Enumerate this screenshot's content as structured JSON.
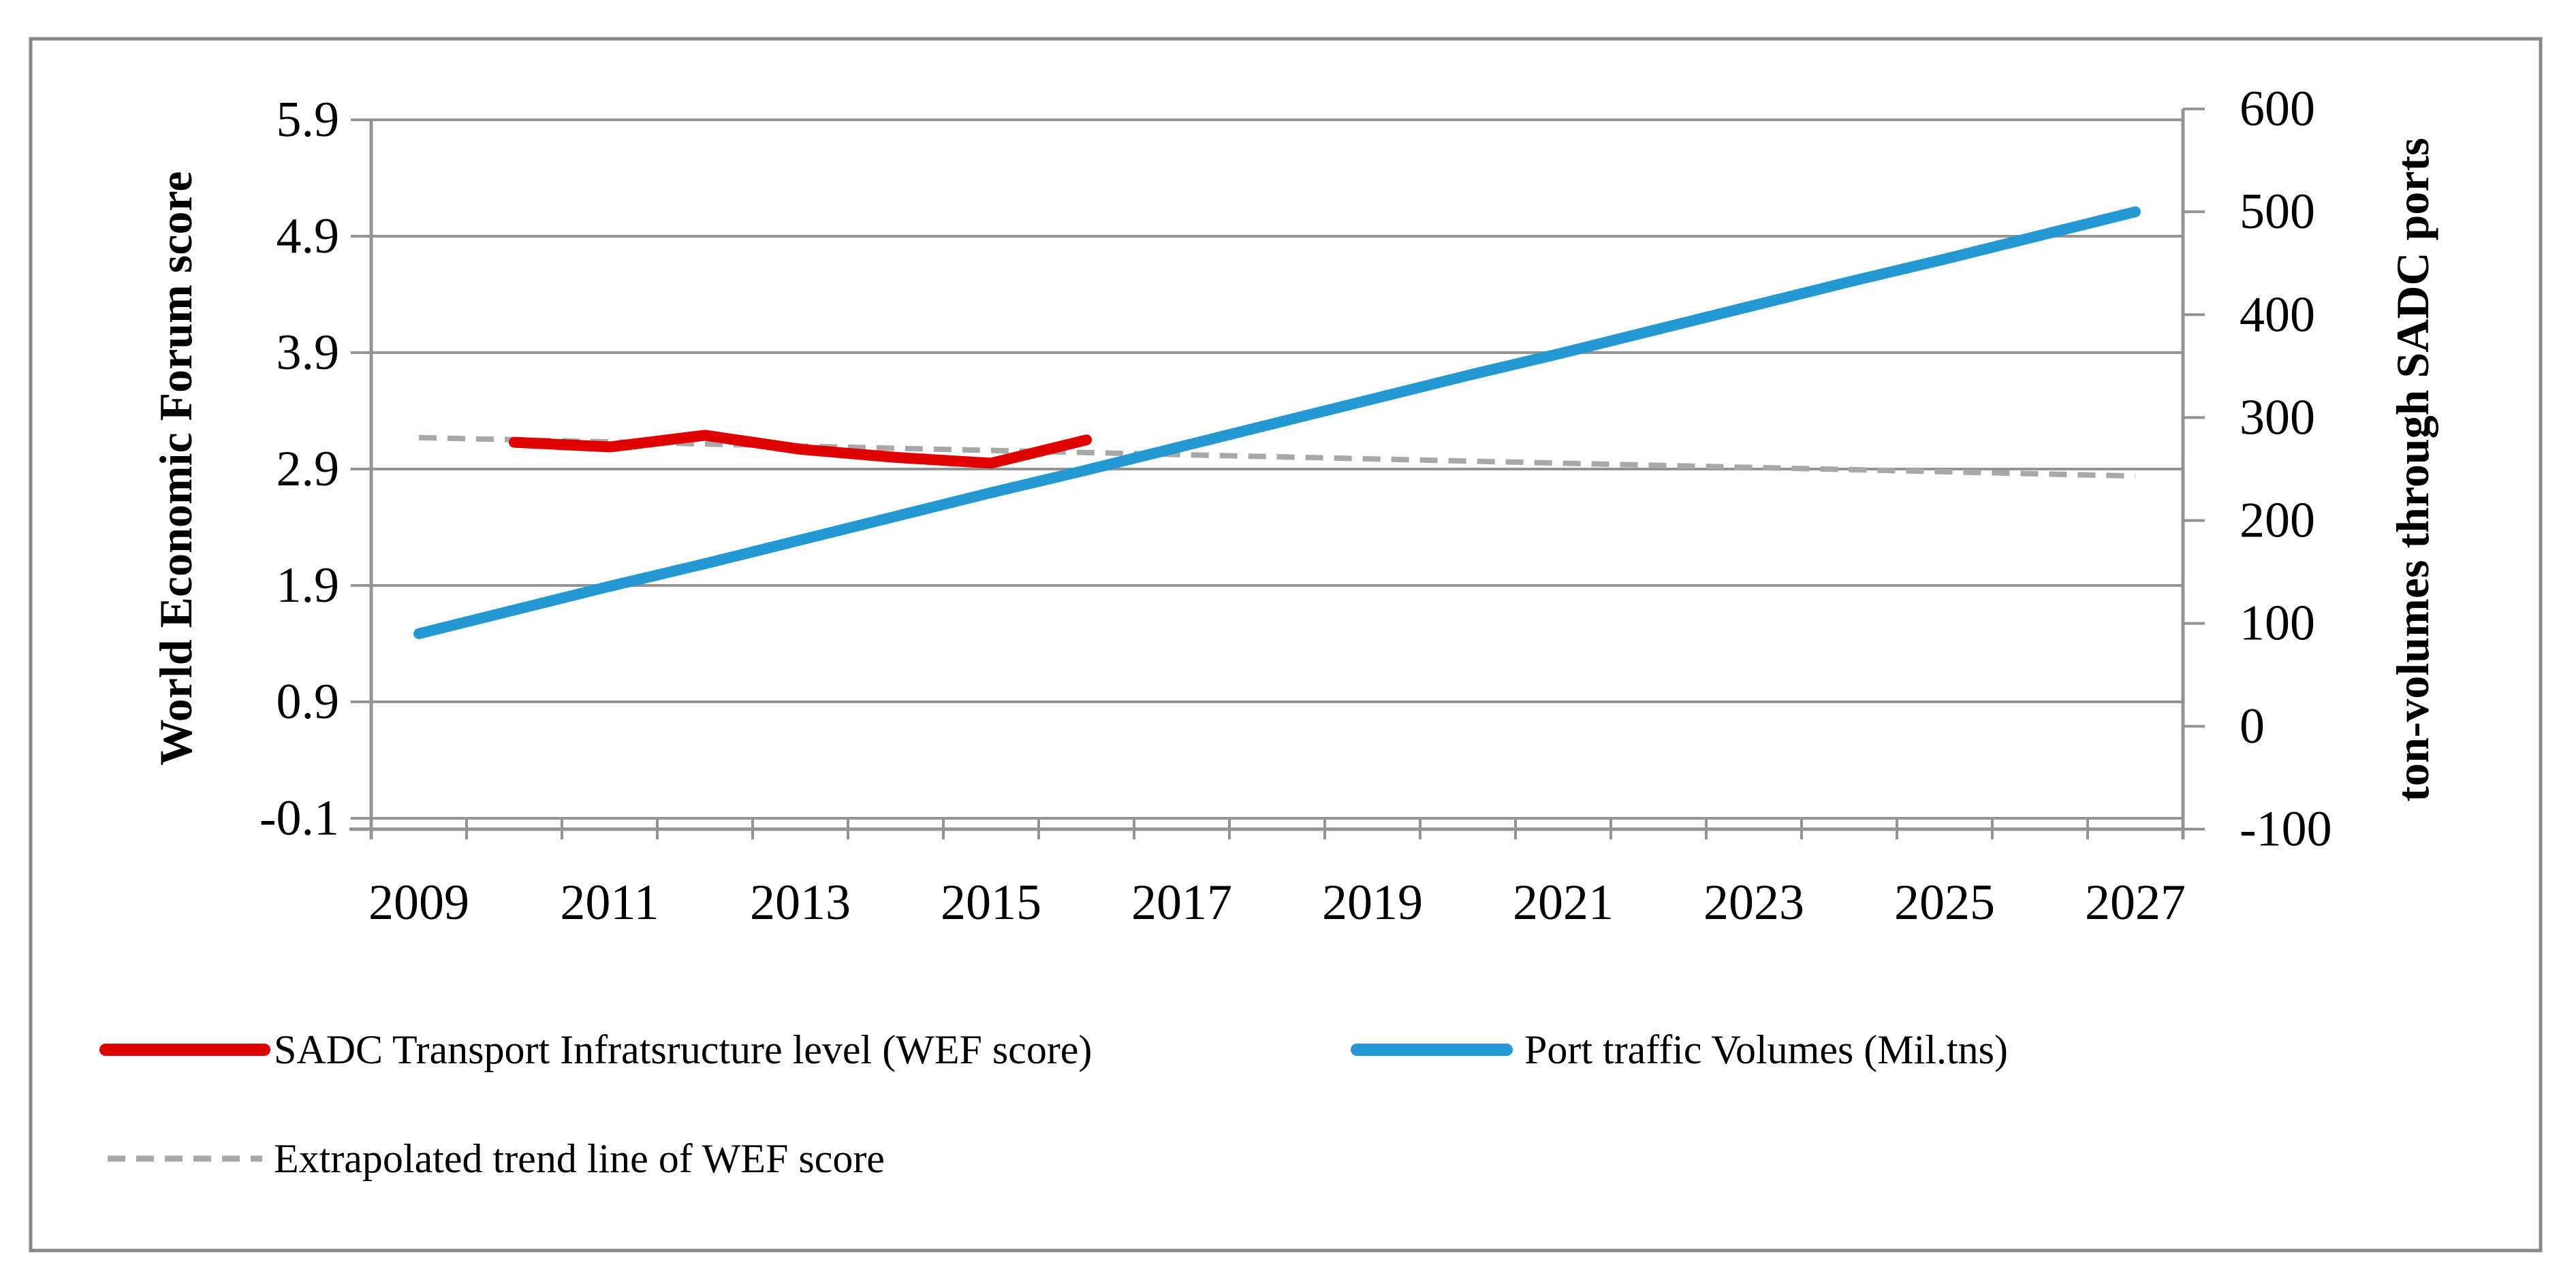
{
  "chart_data": {
    "type": "line",
    "title": "",
    "x_categories": [
      2009,
      2010,
      2011,
      2012,
      2013,
      2014,
      2015,
      2016,
      2017,
      2018,
      2019,
      2020,
      2021,
      2022,
      2023,
      2024,
      2025,
      2026,
      2027
    ],
    "x_tick_labels": [
      "2009",
      "2011",
      "2013",
      "2015",
      "2017",
      "2019",
      "2021",
      "2023",
      "2025",
      "2027"
    ],
    "left_axis": {
      "title": "World Economic Forum score",
      "min": -0.1,
      "max": 5.9,
      "major_unit": 1.0,
      "tick_values": [
        5.9,
        4.9,
        3.9,
        2.9,
        1.9,
        0.9,
        -0.1
      ],
      "tick_labels": [
        "5.9",
        "4.9",
        "3.9",
        "2.9",
        "1.9",
        "0.9",
        "-0.1"
      ]
    },
    "right_axis": {
      "title": "ton-volumes through SADC ports",
      "min": -100,
      "max": 600,
      "major_unit": 100,
      "tick_values": [
        600,
        500,
        400,
        300,
        200,
        100,
        0,
        -100
      ],
      "tick_labels": [
        "600",
        "500",
        "400",
        "300",
        "200",
        "100",
        "0",
        "-100"
      ]
    },
    "grid": "horizontal",
    "legend_position": "bottom-left",
    "series": [
      {
        "name": "SADC Transport Infratsructure level (WEF score)",
        "axis": "left",
        "color": "#E00000",
        "style": "solid",
        "years": [
          2010,
          2011,
          2012,
          2013,
          2014,
          2015,
          2016
        ],
        "values": [
          3.13,
          3.09,
          3.19,
          3.07,
          3.0,
          2.95,
          3.15
        ]
      },
      {
        "name": "Port traffic Volumes (Mil.tns)",
        "axis": "right",
        "color": "#2398D3",
        "style": "solid",
        "years": [
          2009,
          2010,
          2011,
          2012,
          2013,
          2014,
          2015,
          2016,
          2017,
          2018,
          2019,
          2020,
          2021,
          2022,
          2023,
          2024,
          2025,
          2026,
          2027
        ],
        "values": [
          90,
          113,
          136,
          158,
          181,
          204,
          227,
          249,
          272,
          295,
          318,
          341,
          363,
          386,
          409,
          432,
          454,
          477,
          500
        ]
      },
      {
        "name": "Extrapolated trend line of WEF score",
        "axis": "left",
        "color": "#A8A8A8",
        "style": "dashed",
        "years": [
          2009,
          2027
        ],
        "values": [
          3.17,
          2.84
        ]
      }
    ],
    "colors": {
      "gridline": "#949494",
      "axis_line": "#949494",
      "figure_border": "#888888",
      "text": "#000000",
      "background": "#FFFFFF"
    }
  }
}
